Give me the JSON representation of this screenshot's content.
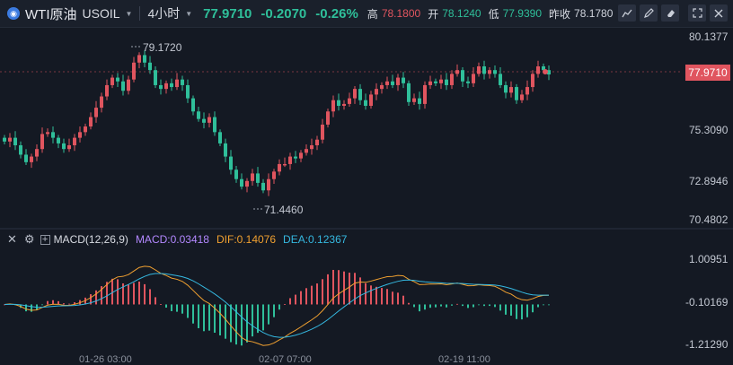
{
  "header": {
    "symbol_name": "WTI原油",
    "symbol_code": "USOIL",
    "interval": "4小时",
    "last_price": "77.9710",
    "change": "-0.2070",
    "change_pct": "-0.26%",
    "high_label": "高",
    "high": "78.1800",
    "open_label": "开",
    "open": "78.1240",
    "low_label": "低",
    "low": "77.9390",
    "prev_close_label": "昨收",
    "prev_close": "78.1780"
  },
  "toolbar": {
    "icons": [
      "chart-line-icon",
      "pencil-icon",
      "eraser-icon",
      "expand-icon",
      "close-icon"
    ]
  },
  "price_axis": {
    "labels": [
      "80.1377",
      "77.9710",
      "75.3090",
      "72.8946",
      "70.4802"
    ],
    "current": "77.9710"
  },
  "annotations": {
    "high_mark": "79.1720",
    "low_mark": "71.4460"
  },
  "macd": {
    "title": "MACD(12,26,9)",
    "macd_label": "MACD:0.03418",
    "dif_label": "DIF:0.14076",
    "dea_label": "DEA:0.12367",
    "axis": [
      "1.00951",
      "-0.10169",
      "-1.21290"
    ],
    "colors": {
      "macd": "#b388ff",
      "dif": "#f0a030",
      "dea": "#35b8e0"
    }
  },
  "time_axis": [
    "01-26 03:00",
    "02-07 07:00",
    "02-19 11:00"
  ],
  "colors": {
    "up": "#e0555f",
    "down": "#2fbf9a",
    "background": "#141923"
  },
  "chart_data": {
    "type": "candlestick",
    "closes": [
      74.4,
      74.6,
      74.2,
      73.7,
      73.3,
      73.6,
      74.0,
      74.8,
      74.9,
      74.6,
      74.3,
      74.0,
      74.2,
      74.6,
      74.9,
      75.2,
      75.7,
      76.2,
      76.8,
      77.4,
      77.8,
      77.6,
      77.1,
      77.7,
      78.6,
      79.0,
      78.6,
      78.2,
      77.4,
      77.2,
      77.5,
      77.3,
      77.7,
      77.4,
      76.7,
      76.0,
      75.6,
      75.4,
      75.7,
      74.9,
      74.3,
      73.6,
      72.9,
      72.4,
      72.0,
      72.3,
      72.7,
      72.2,
      71.8,
      72.4,
      72.8,
      73.2,
      73.2,
      73.6,
      73.5,
      73.8,
      74.0,
      74.2,
      74.5,
      75.3,
      76.0,
      76.6,
      76.3,
      76.4,
      76.7,
      77.2,
      76.6,
      76.3,
      76.9,
      77.2,
      77.4,
      77.6,
      77.4,
      77.8,
      77.5,
      76.5,
      76.7,
      76.4,
      77.4,
      77.6,
      77.5,
      77.7,
      77.4,
      78.0,
      78.2,
      77.6,
      77.5,
      78.0,
      78.4,
      78.0,
      78.2,
      78.0,
      77.4,
      77.0,
      77.3,
      76.6,
      76.9,
      77.3,
      78.0,
      78.4,
      78.2,
      77.97
    ],
    "ylim": [
      70.0,
      80.5
    ]
  }
}
